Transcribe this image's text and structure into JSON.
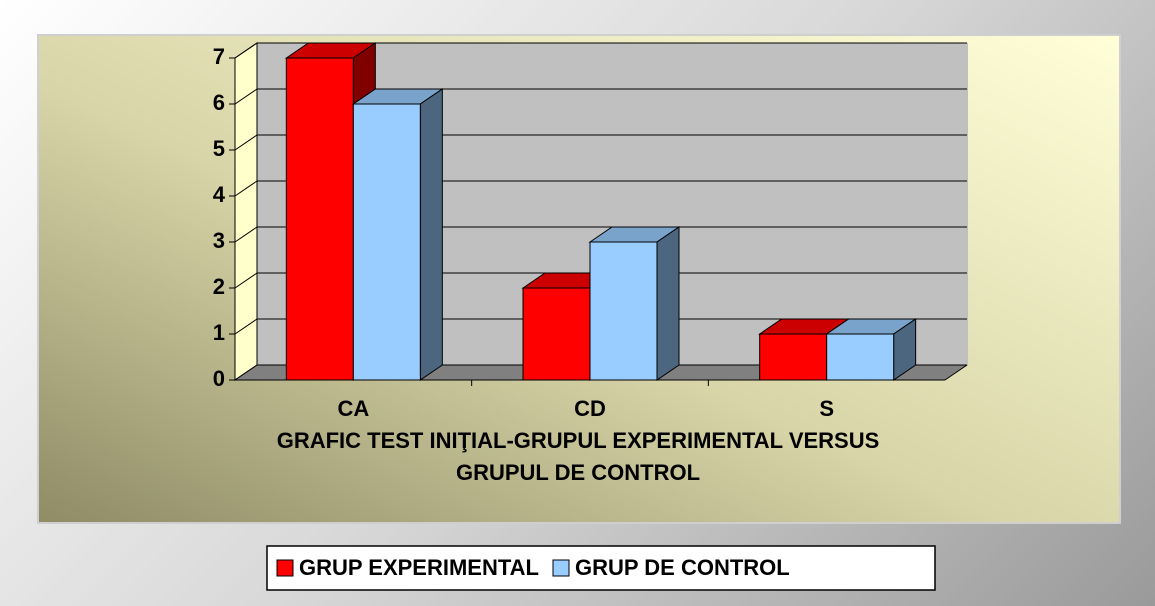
{
  "chart_data": {
    "type": "bar3d",
    "title": "GRAFIC TEST INIŢIAL-GRUPUL EXPERIMENTAL VERSUS GRUPUL DE CONTROL",
    "categories": [
      "CA",
      "CD",
      "S"
    ],
    "series": [
      {
        "name": "GRUP EXPERIMENTAL",
        "color": "#ff0000",
        "values": [
          7,
          2,
          1
        ]
      },
      {
        "name": "GRUP DE CONTROL",
        "color": "#99ccff",
        "values": [
          6,
          3,
          1
        ]
      }
    ],
    "ylim": [
      0,
      7
    ],
    "yticks": [
      0,
      1,
      2,
      3,
      4,
      5,
      6,
      7
    ],
    "grid": true,
    "legend": "bottom"
  }
}
